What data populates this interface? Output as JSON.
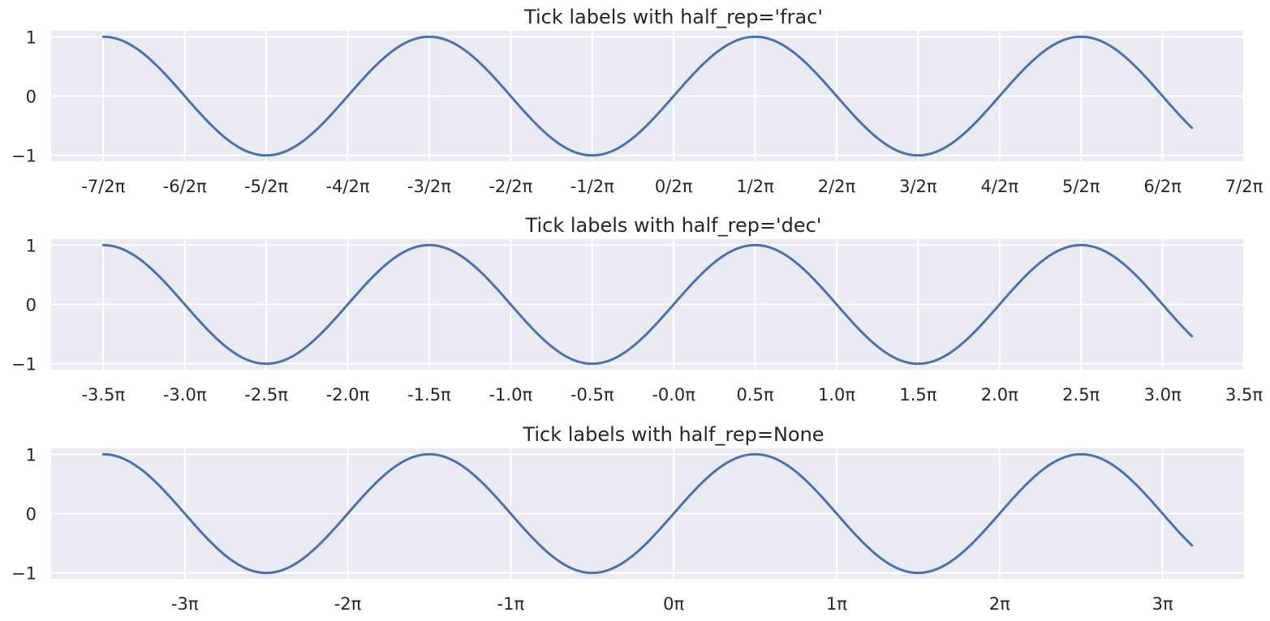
{
  "chart_data": [
    {
      "type": "line",
      "title": "Tick labels with half_rep='frac'",
      "xlabel": "",
      "ylabel": "",
      "x_range": [
        -3.5,
        3.18
      ],
      "xlim": [
        -3.82,
        3.5
      ],
      "ylim": [
        -1.1,
        1.1
      ],
      "x_unit": "π",
      "function": "sin(π·x) with x in multiples of π",
      "grid": true,
      "xticks": [
        -3.5,
        -3.0,
        -2.5,
        -2.0,
        -1.5,
        -1.0,
        -0.5,
        0.0,
        0.5,
        1.0,
        1.5,
        2.0,
        2.5,
        3.0,
        3.5
      ],
      "xtick_labels": [
        "-7/2π",
        "-6/2π",
        "-5/2π",
        "-4/2π",
        "-3/2π",
        "-2/2π",
        "-1/2π",
        "0/2π",
        "1/2π",
        "2/2π",
        "3/2π",
        "4/2π",
        "5/2π",
        "6/2π",
        "7/2π"
      ],
      "yticks": [
        -1,
        0,
        1
      ],
      "ytick_labels": [
        "−1",
        "0",
        "1"
      ],
      "series": [
        {
          "color": "#4c72b0"
        }
      ]
    },
    {
      "type": "line",
      "title": "Tick labels with half_rep='dec'",
      "xlabel": "",
      "ylabel": "",
      "x_range": [
        -3.5,
        3.18
      ],
      "xlim": [
        -3.82,
        3.5
      ],
      "ylim": [
        -1.1,
        1.1
      ],
      "x_unit": "π",
      "function": "sin(π·x) with x in multiples of π",
      "grid": true,
      "xticks": [
        -3.5,
        -3.0,
        -2.5,
        -2.0,
        -1.5,
        -1.0,
        -0.5,
        0.0,
        0.5,
        1.0,
        1.5,
        2.0,
        2.5,
        3.0,
        3.5
      ],
      "xtick_labels": [
        "-3.5π",
        "-3.0π",
        "-2.5π",
        "-2.0π",
        "-1.5π",
        "-1.0π",
        "-0.5π",
        "-0.0π",
        "0.5π",
        "1.0π",
        "1.5π",
        "2.0π",
        "2.5π",
        "3.0π",
        "3.5π"
      ],
      "yticks": [
        -1,
        0,
        1
      ],
      "ytick_labels": [
        "−1",
        "0",
        "1"
      ],
      "series": [
        {
          "color": "#4c72b0"
        }
      ]
    },
    {
      "type": "line",
      "title": "Tick labels with half_rep=None",
      "xlabel": "",
      "ylabel": "",
      "x_range": [
        -3.5,
        3.18
      ],
      "xlim": [
        -3.82,
        3.5
      ],
      "ylim": [
        -1.1,
        1.1
      ],
      "x_unit": "π",
      "function": "sin(π·x) with x in multiples of π",
      "grid": true,
      "xticks": [
        -3,
        -2,
        -1,
        0,
        1,
        2,
        3
      ],
      "xtick_labels": [
        "-3π",
        "-2π",
        "-1π",
        "0π",
        "1π",
        "2π",
        "3π"
      ],
      "yticks": [
        -1,
        0,
        1
      ],
      "ytick_labels": [
        "−1",
        "0",
        "1"
      ],
      "series": [
        {
          "color": "#4c72b0"
        }
      ]
    }
  ]
}
